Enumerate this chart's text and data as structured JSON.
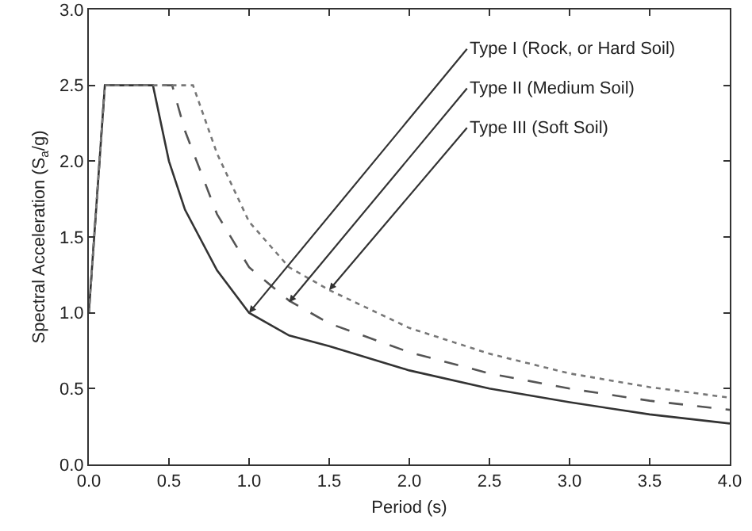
{
  "chart_data": {
    "type": "line",
    "xlabel": "Period (s)",
    "ylabel": "Spectral Acceleration (S$_{a}$/g)",
    "xlim": [
      0,
      4
    ],
    "xticks": [
      {
        "value": 0,
        "label": "0.0"
      },
      {
        "value": 0.5,
        "label": "0.5"
      },
      {
        "value": 1,
        "label": "1.0"
      },
      {
        "value": 1.5,
        "label": "1.5"
      },
      {
        "value": 2,
        "label": "2.0"
      },
      {
        "value": 2.5,
        "label": "2.5"
      },
      {
        "value": 3,
        "label": "3.0"
      },
      {
        "value": 3.5,
        "label": "3.5"
      },
      {
        "value": 4,
        "label": "4.0"
      }
    ],
    "ylim": [
      0,
      3
    ],
    "yticks": [
      {
        "value": 0,
        "label": "0.0"
      },
      {
        "value": 0.5,
        "label": "0.5"
      },
      {
        "value": 1,
        "label": "1.0"
      },
      {
        "value": 1.5,
        "label": "1.5"
      },
      {
        "value": 2,
        "label": "2.0"
      },
      {
        "value": 2.5,
        "label": "2.5"
      },
      {
        "value": 3,
        "label": "3.0"
      }
    ],
    "grid": false,
    "marker": "none",
    "series": [
      {
        "color": "#333333",
        "line_style": "solid",
        "x": [
          0,
          0.1,
          0.4,
          0.5,
          0.6,
          0.8,
          1.0,
          1.25,
          1.5,
          2.0,
          2.5,
          3.0,
          3.5,
          4.0
        ],
        "values": [
          1.0,
          2.5,
          2.5,
          2.0,
          1.68,
          1.28,
          1.0,
          0.85,
          0.78,
          0.62,
          0.5,
          0.41,
          0.33,
          0.27
        ]
      },
      {
        "color": "#555555",
        "line_style": "dashed",
        "x": [
          0,
          0.1,
          0.52,
          0.6,
          0.8,
          1.0,
          1.25,
          1.5,
          2.0,
          2.5,
          3.0,
          3.5,
          4.0
        ],
        "values": [
          1.0,
          2.5,
          2.5,
          2.2,
          1.65,
          1.3,
          1.08,
          0.93,
          0.74,
          0.6,
          0.5,
          0.42,
          0.36
        ]
      },
      {
        "color": "#777777",
        "line_style": "dotted",
        "x": [
          0,
          0.1,
          0.65,
          0.8,
          1.0,
          1.25,
          1.5,
          2.0,
          2.5,
          3.0,
          3.5,
          4.0
        ],
        "values": [
          1.0,
          2.5,
          2.5,
          2.05,
          1.6,
          1.3,
          1.15,
          0.9,
          0.73,
          0.6,
          0.51,
          0.44
        ]
      }
    ],
    "annotations": [
      {
        "text": "Type I (Rock, or Hard Soil)",
        "x": 1.0,
        "y": 1.0
      },
      {
        "text": "Type II (Medium Soil)",
        "x": 1.25,
        "y": 1.07
      },
      {
        "text": "Type III (Soft Soil)",
        "x": 1.5,
        "y": 1.15
      }
    ]
  }
}
